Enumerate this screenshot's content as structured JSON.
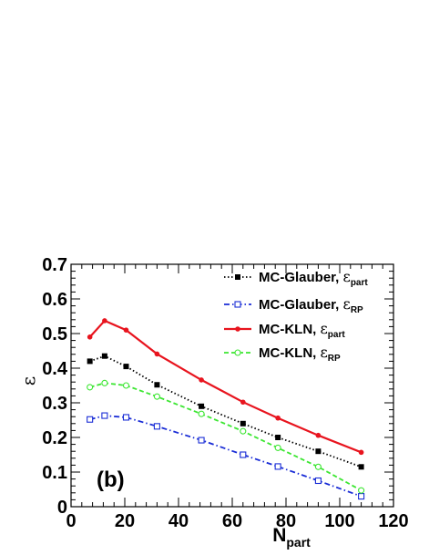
{
  "chart_data": {
    "type": "line",
    "panel_label": "(b)",
    "xlabel_main": "N",
    "xlabel_sub": "part",
    "ylabel": "ε",
    "xlim": [
      0,
      120
    ],
    "ylim": [
      0,
      0.7
    ],
    "xticks": [
      "0",
      "20",
      "40",
      "60",
      "80",
      "100",
      "120"
    ],
    "yticks": [
      "0",
      "0.1",
      "0.2",
      "0.3",
      "0.4",
      "0.5",
      "0.6",
      "0.7"
    ],
    "legend_position": "top-right",
    "x": [
      7,
      12.5,
      20.5,
      32,
      48.5,
      64,
      77,
      92,
      108
    ],
    "series": [
      {
        "label_main": "MC-Glauber, ",
        "label_symbol": "ε",
        "label_sub": "part",
        "color": "#000000",
        "marker": "filled-square",
        "line": "dotted",
        "values": [
          0.42,
          0.435,
          0.405,
          0.352,
          0.29,
          0.24,
          0.2,
          0.16,
          0.115
        ]
      },
      {
        "label_main": "MC-Glauber, ",
        "label_symbol": "ε",
        "label_sub": "RP",
        "color": "#1a2dd6",
        "marker": "open-square",
        "line": "dash-dot",
        "values": [
          0.252,
          0.263,
          0.258,
          0.232,
          0.192,
          0.15,
          0.116,
          0.075,
          0.03
        ]
      },
      {
        "label_main": "MC-KLN, ",
        "label_symbol": "ε",
        "label_sub": "part",
        "color": "#e8141e",
        "marker": "filled-circle",
        "line": "solid",
        "values": [
          0.49,
          0.537,
          0.51,
          0.441,
          0.366,
          0.302,
          0.256,
          0.206,
          0.157
        ]
      },
      {
        "label_main": "MC-KLN, ",
        "label_symbol": "ε",
        "label_sub": "RP",
        "color": "#3ce632",
        "marker": "open-circle",
        "line": "dashed",
        "values": [
          0.345,
          0.357,
          0.35,
          0.318,
          0.268,
          0.218,
          0.17,
          0.115,
          0.047
        ]
      }
    ]
  }
}
